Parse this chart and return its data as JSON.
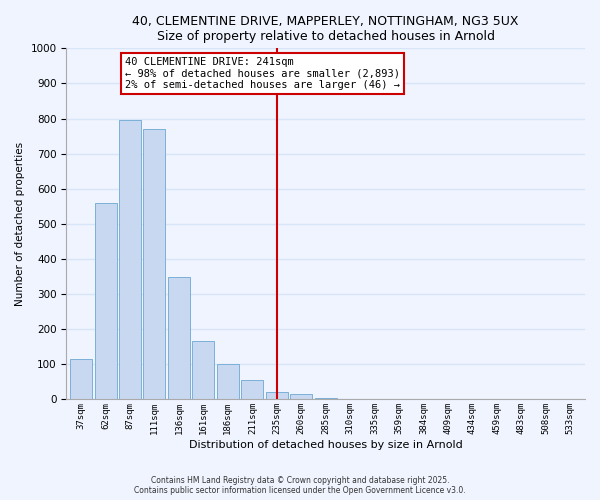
{
  "title": "40, CLEMENTINE DRIVE, MAPPERLEY, NOTTINGHAM, NG3 5UX",
  "subtitle": "Size of property relative to detached houses in Arnold",
  "xlabel": "Distribution of detached houses by size in Arnold",
  "ylabel": "Number of detached properties",
  "bin_labels": [
    "37sqm",
    "62sqm",
    "87sqm",
    "111sqm",
    "136sqm",
    "161sqm",
    "186sqm",
    "211sqm",
    "235sqm",
    "260sqm",
    "285sqm",
    "310sqm",
    "335sqm",
    "359sqm",
    "384sqm",
    "409sqm",
    "434sqm",
    "459sqm",
    "483sqm",
    "508sqm",
    "533sqm"
  ],
  "bar_values": [
    115,
    560,
    795,
    770,
    350,
    165,
    100,
    55,
    20,
    15,
    5,
    2,
    1,
    0,
    0,
    0,
    0,
    0,
    0,
    0,
    0
  ],
  "bar_color": "#c8d8f0",
  "bar_edge_color": "#7ab0d8",
  "vline_x": 8.0,
  "vline_color": "#cc0000",
  "annotation_text": "40 CLEMENTINE DRIVE: 241sqm\n← 98% of detached houses are smaller (2,893)\n2% of semi-detached houses are larger (46) →",
  "annotation_box_color": "white",
  "annotation_box_edge_color": "#cc0000",
  "ylim": [
    0,
    1000
  ],
  "yticks": [
    0,
    100,
    200,
    300,
    400,
    500,
    600,
    700,
    800,
    900,
    1000
  ],
  "footnote1": "Contains HM Land Registry data © Crown copyright and database right 2025.",
  "footnote2": "Contains public sector information licensed under the Open Government Licence v3.0.",
  "background_color": "#f0f4ff",
  "grid_color": "#d8e4f8"
}
